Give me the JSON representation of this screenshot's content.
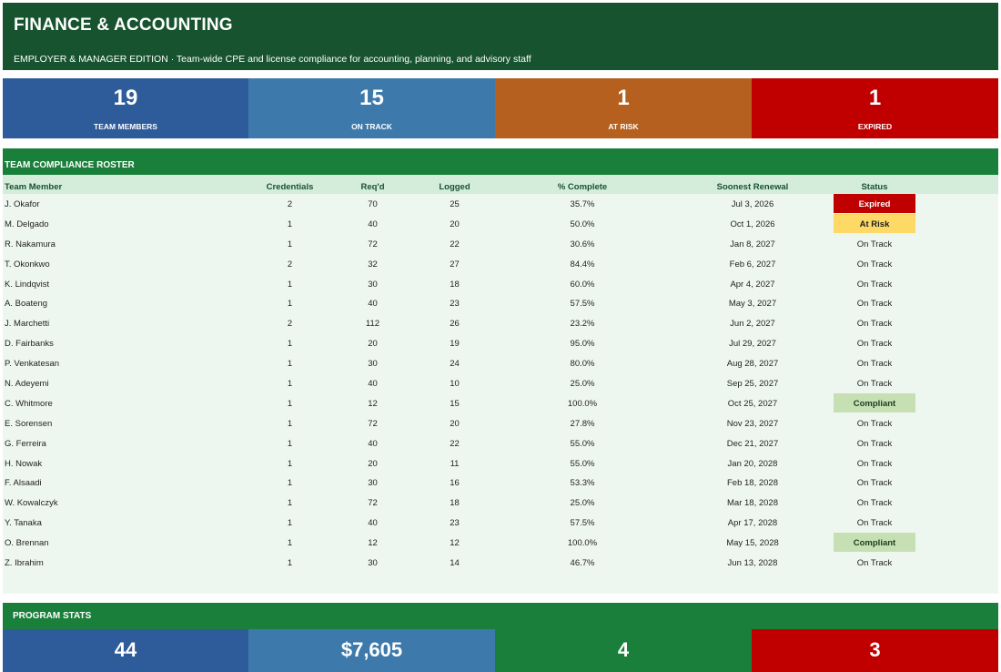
{
  "header": {
    "title": "FINANCE & ACCOUNTING",
    "subtitle": "EMPLOYER & MANAGER EDITION  ·  Team-wide CPE and license compliance for accounting, planning, and advisory staff"
  },
  "kpis": [
    {
      "value": "19",
      "label": "TEAM MEMBERS",
      "color": "#2e5b9a"
    },
    {
      "value": "15",
      "label": "ON TRACK",
      "color": "#3d7aab"
    },
    {
      "value": "1",
      "label": "AT RISK",
      "color": "#b5601f"
    },
    {
      "value": "1",
      "label": "EXPIRED",
      "color": "#c00000"
    }
  ],
  "roster": {
    "title": "TEAM COMPLIANCE ROSTER",
    "columns": {
      "member": "Team Member",
      "credentials": "Credentials",
      "required": "Req'd",
      "logged": "Logged",
      "complete": "% Complete",
      "renewal": "Soonest Renewal",
      "status": "Status"
    },
    "rows": [
      {
        "member": "J. Okafor",
        "credentials": "2",
        "required": "70",
        "logged": "25",
        "complete": "35.7%",
        "renewal": "Jul 3, 2026",
        "status": "Expired"
      },
      {
        "member": "M. Delgado",
        "credentials": "1",
        "required": "40",
        "logged": "20",
        "complete": "50.0%",
        "renewal": "Oct 1, 2026",
        "status": "At Risk"
      },
      {
        "member": "R. Nakamura",
        "credentials": "1",
        "required": "72",
        "logged": "22",
        "complete": "30.6%",
        "renewal": "Jan 8, 2027",
        "status": "On Track"
      },
      {
        "member": "T. Okonkwo",
        "credentials": "2",
        "required": "32",
        "logged": "27",
        "complete": "84.4%",
        "renewal": "Feb 6, 2027",
        "status": "On Track"
      },
      {
        "member": "K. Lindqvist",
        "credentials": "1",
        "required": "30",
        "logged": "18",
        "complete": "60.0%",
        "renewal": "Apr 4, 2027",
        "status": "On Track"
      },
      {
        "member": "A. Boateng",
        "credentials": "1",
        "required": "40",
        "logged": "23",
        "complete": "57.5%",
        "renewal": "May 3, 2027",
        "status": "On Track"
      },
      {
        "member": "J. Marchetti",
        "credentials": "2",
        "required": "112",
        "logged": "26",
        "complete": "23.2%",
        "renewal": "Jun 2, 2027",
        "status": "On Track"
      },
      {
        "member": "D. Fairbanks",
        "credentials": "1",
        "required": "20",
        "logged": "19",
        "complete": "95.0%",
        "renewal": "Jul 29, 2027",
        "status": "On Track"
      },
      {
        "member": "P. Venkatesan",
        "credentials": "1",
        "required": "30",
        "logged": "24",
        "complete": "80.0%",
        "renewal": "Aug 28, 2027",
        "status": "On Track"
      },
      {
        "member": "N. Adeyemi",
        "credentials": "1",
        "required": "40",
        "logged": "10",
        "complete": "25.0%",
        "renewal": "Sep 25, 2027",
        "status": "On Track"
      },
      {
        "member": "C. Whitmore",
        "credentials": "1",
        "required": "12",
        "logged": "15",
        "complete": "100.0%",
        "renewal": "Oct 25, 2027",
        "status": "Compliant"
      },
      {
        "member": "E. Sorensen",
        "credentials": "1",
        "required": "72",
        "logged": "20",
        "complete": "27.8%",
        "renewal": "Nov 23, 2027",
        "status": "On Track"
      },
      {
        "member": "G. Ferreira",
        "credentials": "1",
        "required": "40",
        "logged": "22",
        "complete": "55.0%",
        "renewal": "Dec 21, 2027",
        "status": "On Track"
      },
      {
        "member": "H. Nowak",
        "credentials": "1",
        "required": "20",
        "logged": "11",
        "complete": "55.0%",
        "renewal": "Jan 20, 2028",
        "status": "On Track"
      },
      {
        "member": "F. Alsaadi",
        "credentials": "1",
        "required": "30",
        "logged": "16",
        "complete": "53.3%",
        "renewal": "Feb 18, 2028",
        "status": "On Track"
      },
      {
        "member": "W. Kowalczyk",
        "credentials": "1",
        "required": "72",
        "logged": "18",
        "complete": "25.0%",
        "renewal": "Mar 18, 2028",
        "status": "On Track"
      },
      {
        "member": "Y. Tanaka",
        "credentials": "1",
        "required": "40",
        "logged": "23",
        "complete": "57.5%",
        "renewal": "Apr 17, 2028",
        "status": "On Track"
      },
      {
        "member": "O. Brennan",
        "credentials": "1",
        "required": "12",
        "logged": "12",
        "complete": "100.0%",
        "renewal": "May 15, 2028",
        "status": "Compliant"
      },
      {
        "member": "Z. Ibrahim",
        "credentials": "1",
        "required": "30",
        "logged": "14",
        "complete": "46.7%",
        "renewal": "Jun 13, 2028",
        "status": "On Track"
      }
    ]
  },
  "program_stats": {
    "title": "PROGRAM STATS",
    "values": [
      {
        "value": "44",
        "color": "#2e5b9a"
      },
      {
        "value": "$7,605",
        "color": "#3d7aab"
      },
      {
        "value": "4",
        "color": "#1a7f3b"
      },
      {
        "value": "3",
        "color": "#c00000"
      }
    ]
  },
  "status_colors": {
    "Expired": "#c00000",
    "At Risk": "#ffd966",
    "Compliant": "#c6e0b4"
  }
}
